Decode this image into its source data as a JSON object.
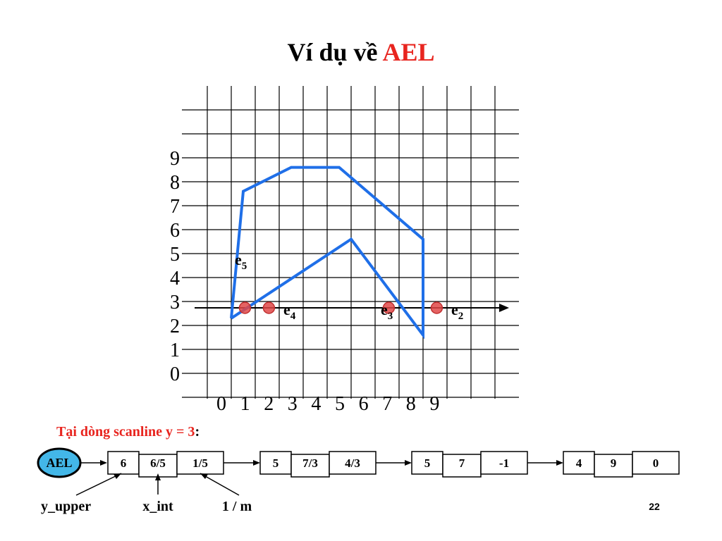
{
  "title": {
    "prefix": "Ví dụ về ",
    "highlight": "AEL",
    "highlight_color": "#e8251f"
  },
  "grid": {
    "y_labels": [
      "9",
      "8",
      "7",
      "6",
      "5",
      "4",
      "3",
      "2",
      "1",
      "0"
    ],
    "x_labels": [
      "0",
      "1",
      "2",
      "3",
      "4",
      "5",
      "6",
      "7",
      "8",
      "9"
    ],
    "scanline_y": 3
  },
  "polygon": {
    "color": "#1f6fe8",
    "vertices": [
      [
        1.0,
        2.3
      ],
      [
        1.5,
        7.6
      ],
      [
        3.5,
        8.6
      ],
      [
        5.5,
        8.6
      ],
      [
        9.0,
        5.6
      ],
      [
        9.0,
        1.6
      ],
      [
        6.0,
        5.6
      ],
      [
        1.0,
        2.3
      ]
    ]
  },
  "intersections": {
    "color": "#e04848",
    "x": [
      1.1,
      2.1,
      7.1,
      9.1
    ]
  },
  "edge_labels": [
    {
      "base": "e",
      "sub": "5"
    },
    {
      "base": "e",
      "sub": "4"
    },
    {
      "base": "e",
      "sub": "3"
    },
    {
      "base": "e",
      "sub": "2"
    }
  ],
  "caption": {
    "text": "Tại dòng scanline y = 3",
    "suffix": ":",
    "color": "#e8251f"
  },
  "ael": {
    "head_label": "AEL",
    "head_color": "#43b7e8",
    "nodes": [
      [
        "6",
        "6/5",
        "1/5"
      ],
      [
        "5",
        "7/3",
        "4/3"
      ],
      [
        "5",
        "7",
        "-1"
      ],
      [
        "4",
        "9",
        "0"
      ]
    ],
    "field_labels": [
      "y_upper",
      "x_int",
      "1 / m"
    ]
  },
  "page_number": "22"
}
